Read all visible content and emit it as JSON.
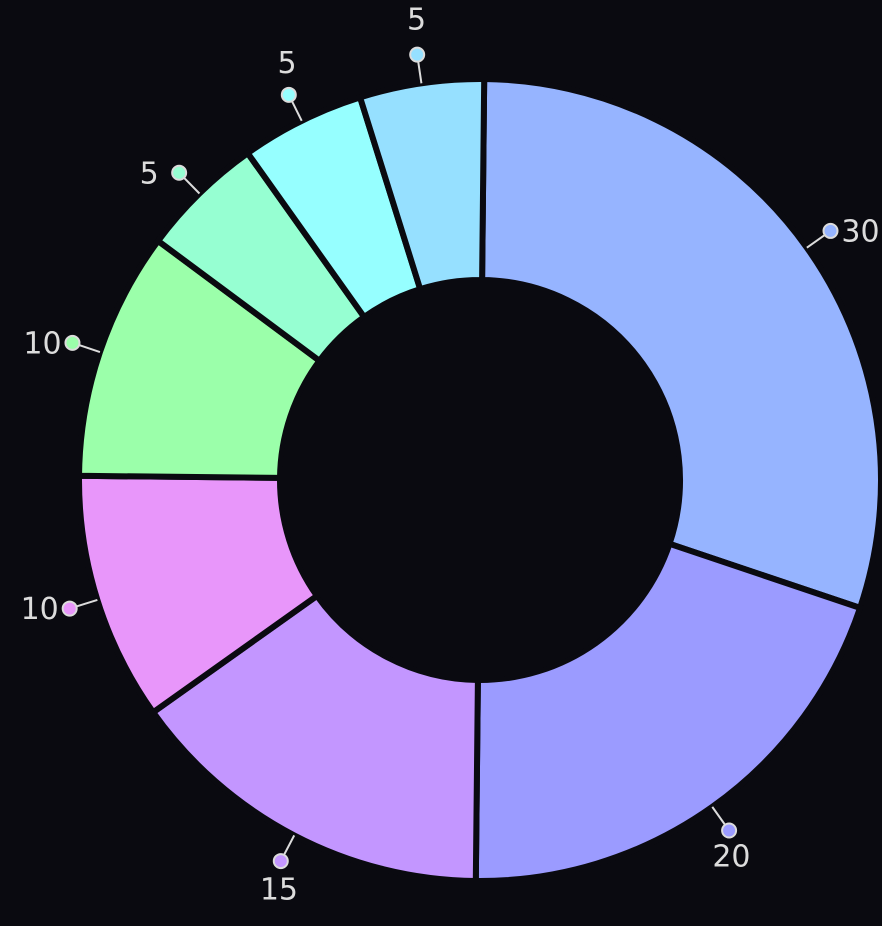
{
  "chart_data": {
    "type": "donut",
    "values": [
      30,
      20,
      15,
      10,
      10,
      5,
      5,
      5
    ],
    "colors": [
      "#96b4ff",
      "#9b9bff",
      "#c396ff",
      "#e896fa",
      "#9bffaa",
      "#96ffd2",
      "#96ffff",
      "#96e0ff"
    ]
  }
}
